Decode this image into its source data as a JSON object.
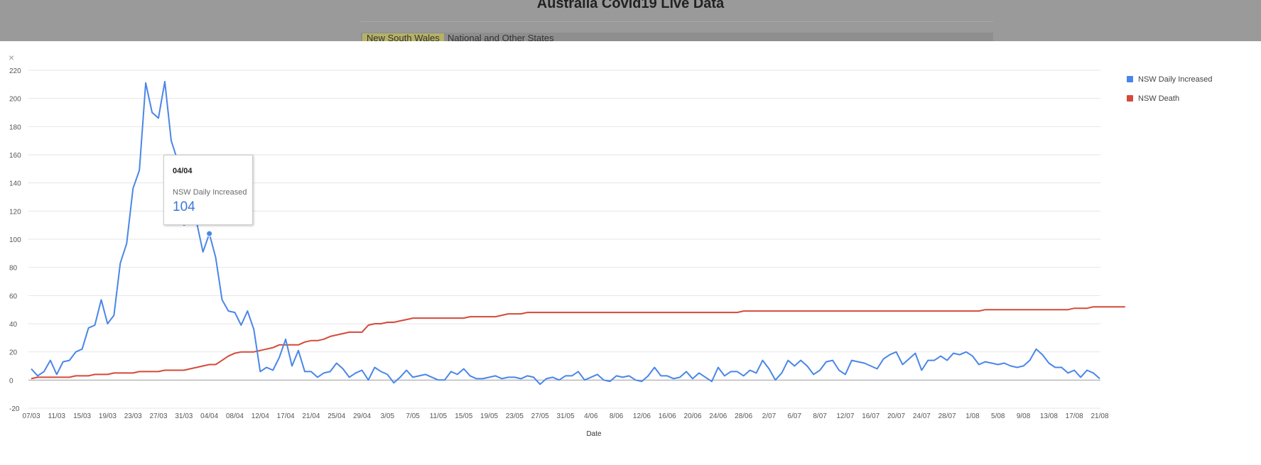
{
  "background_page": {
    "title": "Australia Covid19 Live Data",
    "tabs": [
      {
        "label": "New South Wales",
        "active": true
      },
      {
        "label": "National and Other States",
        "active": false
      }
    ]
  },
  "modal": {
    "close_label": "×"
  },
  "tooltip": {
    "date": "04/04",
    "series": "NSW Daily Increased",
    "value": "104"
  },
  "colors": {
    "nsw_daily_increased": "#4a86e8",
    "nsw_death": "#d44a3a",
    "gridline": "#e6e6e6",
    "zero_line": "#9e9e9e",
    "axis_text": "#555555"
  },
  "chart_data": {
    "type": "line",
    "title": "",
    "xlabel": "Date",
    "ylabel": "",
    "ylim": [
      -20,
      220
    ],
    "yticks": [
      "220",
      "200",
      "180",
      "160",
      "140",
      "120",
      "100",
      "80",
      "60",
      "40",
      "20",
      "0",
      "-20"
    ],
    "grid": true,
    "legend_position": "right",
    "highlight": {
      "series": "NSW Daily Increased",
      "x_index": 28,
      "value": 104
    },
    "x_tick_labels": [
      "07/03",
      "11/03",
      "15/03",
      "19/03",
      "23/03",
      "27/03",
      "31/03",
      "04/04",
      "08/04",
      "12/04",
      "17/04",
      "21/04",
      "25/04",
      "29/04",
      "3/05",
      "7/05",
      "11/05",
      "15/05",
      "19/05",
      "23/05",
      "27/05",
      "31/05",
      "4/06",
      "8/06",
      "12/06",
      "16/06",
      "20/06",
      "24/06",
      "28/06",
      "2/07",
      "6/07",
      "8/07",
      "12/07",
      "16/07",
      "20/07",
      "24/07",
      "28/07",
      "1/08",
      "5/08",
      "9/08",
      "13/08",
      "17/08",
      "21/08"
    ],
    "series": [
      {
        "name": "NSW Daily Increased",
        "values": [
          8,
          3,
          6,
          14,
          4,
          13,
          14,
          20,
          22,
          37,
          39,
          57,
          40,
          46,
          83,
          97,
          136,
          149,
          211,
          190,
          186,
          212,
          170,
          156,
          110,
          113,
          112,
          91,
          104,
          87,
          57,
          49,
          48,
          39,
          49,
          36,
          6,
          9,
          7,
          16,
          29,
          10,
          21,
          6,
          6,
          2,
          5,
          6,
          12,
          8,
          2,
          5,
          7,
          0,
          9,
          6,
          4,
          -2,
          2,
          7,
          2,
          3,
          4,
          2,
          0,
          0,
          6,
          4,
          8,
          3,
          1,
          1,
          2,
          3,
          1,
          2,
          2,
          1,
          3,
          2,
          -3,
          1,
          2,
          0,
          3,
          3,
          6,
          0,
          2,
          4,
          0,
          -1,
          3,
          2,
          3,
          0,
          -1,
          3,
          9,
          3,
          3,
          1,
          2,
          6,
          1,
          5,
          2,
          -1,
          9,
          3,
          6,
          6,
          3,
          7,
          5,
          14,
          8,
          0,
          5,
          14,
          10,
          14,
          10,
          4,
          7,
          13,
          14,
          7,
          4,
          14,
          13,
          12,
          10,
          8,
          15,
          18,
          20,
          11,
          15,
          19,
          7,
          14,
          14,
          17,
          14,
          19,
          18,
          20,
          17,
          11,
          13,
          12,
          11,
          12,
          10,
          9,
          10,
          14,
          22,
          18,
          12,
          9,
          9,
          5,
          7,
          2,
          7,
          5,
          1
        ]
      },
      {
        "name": "NSW Death",
        "values": [
          1,
          2,
          2,
          2,
          2,
          2,
          2,
          3,
          3,
          3,
          4,
          4,
          4,
          5,
          5,
          5,
          5,
          6,
          6,
          6,
          6,
          7,
          7,
          7,
          7,
          8,
          9,
          10,
          11,
          11,
          14,
          17,
          19,
          20,
          20,
          20,
          21,
          22,
          23,
          25,
          25,
          25,
          25,
          27,
          28,
          28,
          29,
          31,
          32,
          33,
          34,
          34,
          34,
          39,
          40,
          40,
          41,
          41,
          42,
          43,
          44,
          44,
          44,
          44,
          44,
          44,
          44,
          44,
          44,
          45,
          45,
          45,
          45,
          45,
          46,
          47,
          47,
          47,
          48,
          48,
          48,
          48,
          48,
          48,
          48,
          48,
          48,
          48,
          48,
          48,
          48,
          48,
          48,
          48,
          48,
          48,
          48,
          48,
          48,
          48,
          48,
          48,
          48,
          48,
          48,
          48,
          48,
          48,
          48,
          48,
          48,
          48,
          49,
          49,
          49,
          49,
          49,
          49,
          49,
          49,
          49,
          49,
          49,
          49,
          49,
          49,
          49,
          49,
          49,
          49,
          49,
          49,
          49,
          49,
          49,
          49,
          49,
          49,
          49,
          49,
          49,
          49,
          49,
          49,
          49,
          49,
          49,
          49,
          49,
          49,
          50,
          50,
          50,
          50,
          50,
          50,
          50,
          50,
          50,
          50,
          50,
          50,
          50,
          50,
          51,
          51,
          51,
          52,
          52,
          52,
          52,
          52,
          52
        ]
      }
    ]
  }
}
